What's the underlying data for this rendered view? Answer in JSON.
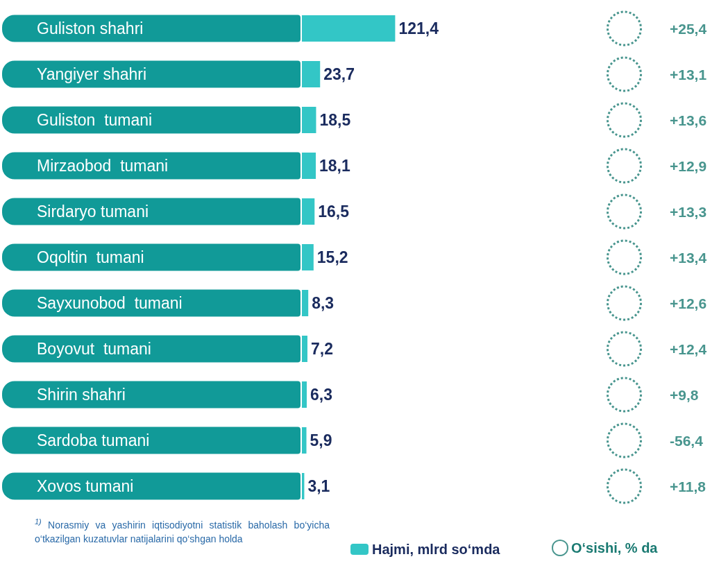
{
  "chart_data": [
    {
      "type": "bar",
      "orientation": "horizontal",
      "categories": [
        "Guliston shahri",
        "Yangiyer shahri",
        "Guliston  tumani",
        "Mirzaobod  tumani",
        "Sirdaryo tumani",
        "Oqoltin  tumani",
        "Sayxunobod  tumani",
        "Boyovut  tumani",
        "Shirin shahri",
        "Sardoba tumani",
        "Xovos tumani"
      ],
      "series": [
        {
          "name": "Hajmi, mlrd so‘mda",
          "color": "#33c6c6",
          "values": [
            121.4,
            23.7,
            18.5,
            18.1,
            16.5,
            15.2,
            8.3,
            7.2,
            6.3,
            5.9,
            3.1
          ],
          "value_labels": [
            "121,4",
            "23,7",
            "18,5",
            "18,1",
            "16,5",
            "15,2",
            "8,3",
            "7,2",
            "6,3",
            "5,9",
            "3,1"
          ]
        }
      ],
      "legend": "bottom",
      "tick_labels": "y",
      "annotations": [
        "$^{1)}$ Norasmiy va yashirin iqtisodiyotni statistik baholash bo‘yicha o‘tkazilgan kuzatuvlar natijalarini qo‘shgan holda"
      ]
    },
    {
      "type": "other",
      "categories": [
        null,
        null,
        null,
        null,
        null,
        null,
        null,
        null,
        null,
        null,
        null
      ],
      "series": [
        {
          "name": "O‘sishi, % da",
          "color": "#1a7a72",
          "values": [
            25.4,
            13.1,
            13.6,
            12.9,
            13.3,
            13.4,
            12.6,
            12.4,
            9.8,
            -56.4,
            11.8
          ],
          "value_labels": [
            "+25,4",
            "+13,1",
            "+13,6",
            "+12,9",
            "+13,3",
            "+13,4",
            "+12,6",
            "+12,4",
            "+9,8",
            "-56,4",
            "+11,8"
          ]
        }
      ],
      "legend": "bottom"
    }
  ]
}
